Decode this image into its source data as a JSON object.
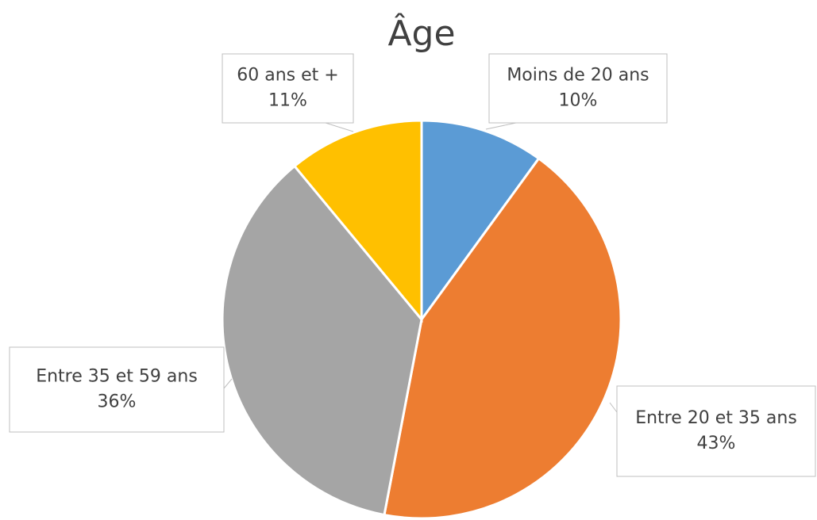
{
  "chart_data": {
    "type": "pie",
    "title": "Âge",
    "categories": [
      "Moins de 20 ans",
      "Entre 20 et 35 ans",
      "Entre 35 et 59 ans",
      "60 ans et +"
    ],
    "values": [
      10,
      43,
      36,
      11
    ],
    "value_labels": [
      "10%",
      "43%",
      "36%",
      "11%"
    ],
    "colors": [
      "#5b9bd5",
      "#ed7d31",
      "#a5a5a5",
      "#ffc000"
    ]
  }
}
